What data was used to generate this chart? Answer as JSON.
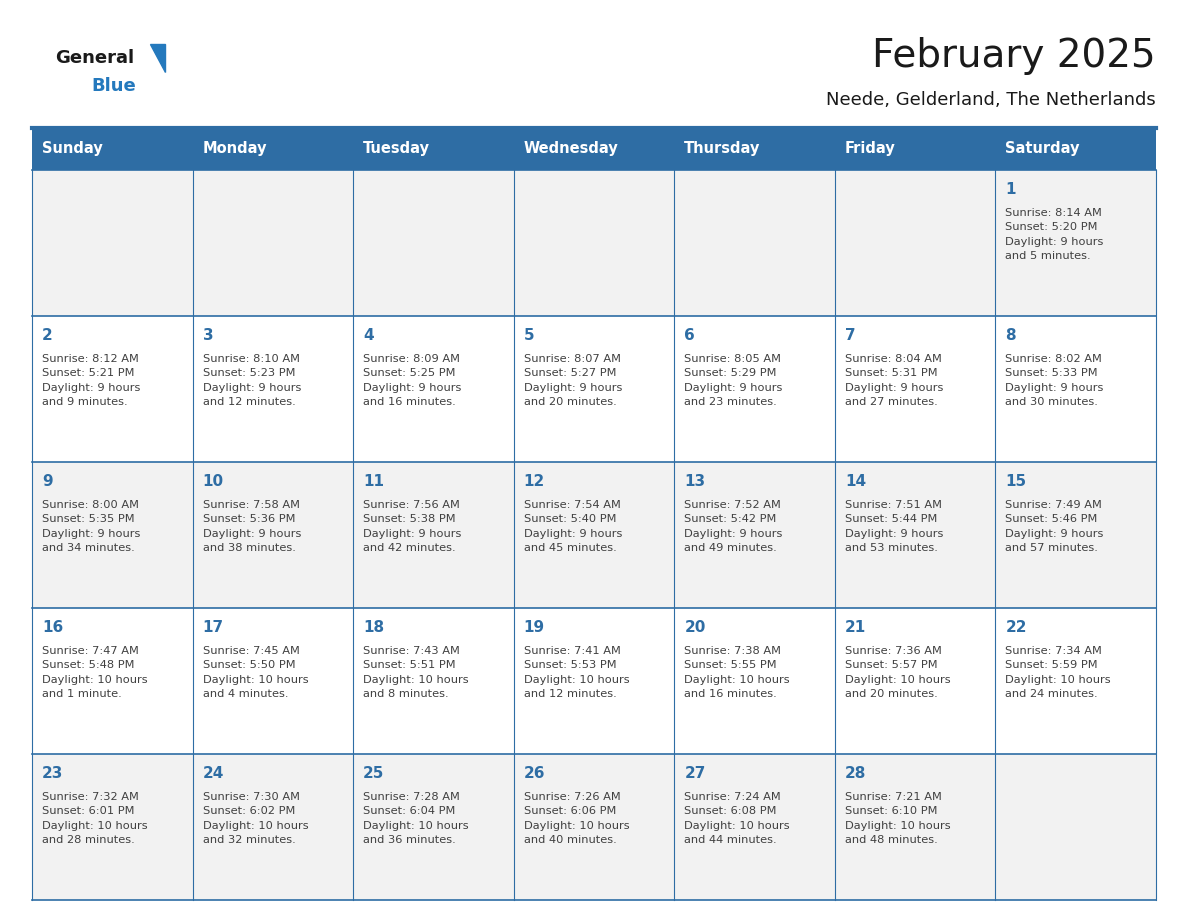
{
  "title": "February 2025",
  "subtitle": "Neede, Gelderland, The Netherlands",
  "days_of_week": [
    "Sunday",
    "Monday",
    "Tuesday",
    "Wednesday",
    "Thursday",
    "Friday",
    "Saturday"
  ],
  "header_bg": "#2E6DA4",
  "header_text": "#FFFFFF",
  "cell_bg_gray": "#F2F2F2",
  "cell_bg_white": "#FFFFFF",
  "cell_border": "#2E6DA4",
  "day_number_color": "#2E6DA4",
  "text_color": "#404040",
  "title_color": "#1a1a1a",
  "logo_general_color": "#1a1a1a",
  "logo_blue_color": "#2479BD",
  "calendar_data": [
    [
      {
        "day": null,
        "info": ""
      },
      {
        "day": null,
        "info": ""
      },
      {
        "day": null,
        "info": ""
      },
      {
        "day": null,
        "info": ""
      },
      {
        "day": null,
        "info": ""
      },
      {
        "day": null,
        "info": ""
      },
      {
        "day": 1,
        "info": "Sunrise: 8:14 AM\nSunset: 5:20 PM\nDaylight: 9 hours\nand 5 minutes."
      }
    ],
    [
      {
        "day": 2,
        "info": "Sunrise: 8:12 AM\nSunset: 5:21 PM\nDaylight: 9 hours\nand 9 minutes."
      },
      {
        "day": 3,
        "info": "Sunrise: 8:10 AM\nSunset: 5:23 PM\nDaylight: 9 hours\nand 12 minutes."
      },
      {
        "day": 4,
        "info": "Sunrise: 8:09 AM\nSunset: 5:25 PM\nDaylight: 9 hours\nand 16 minutes."
      },
      {
        "day": 5,
        "info": "Sunrise: 8:07 AM\nSunset: 5:27 PM\nDaylight: 9 hours\nand 20 minutes."
      },
      {
        "day": 6,
        "info": "Sunrise: 8:05 AM\nSunset: 5:29 PM\nDaylight: 9 hours\nand 23 minutes."
      },
      {
        "day": 7,
        "info": "Sunrise: 8:04 AM\nSunset: 5:31 PM\nDaylight: 9 hours\nand 27 minutes."
      },
      {
        "day": 8,
        "info": "Sunrise: 8:02 AM\nSunset: 5:33 PM\nDaylight: 9 hours\nand 30 minutes."
      }
    ],
    [
      {
        "day": 9,
        "info": "Sunrise: 8:00 AM\nSunset: 5:35 PM\nDaylight: 9 hours\nand 34 minutes."
      },
      {
        "day": 10,
        "info": "Sunrise: 7:58 AM\nSunset: 5:36 PM\nDaylight: 9 hours\nand 38 minutes."
      },
      {
        "day": 11,
        "info": "Sunrise: 7:56 AM\nSunset: 5:38 PM\nDaylight: 9 hours\nand 42 minutes."
      },
      {
        "day": 12,
        "info": "Sunrise: 7:54 AM\nSunset: 5:40 PM\nDaylight: 9 hours\nand 45 minutes."
      },
      {
        "day": 13,
        "info": "Sunrise: 7:52 AM\nSunset: 5:42 PM\nDaylight: 9 hours\nand 49 minutes."
      },
      {
        "day": 14,
        "info": "Sunrise: 7:51 AM\nSunset: 5:44 PM\nDaylight: 9 hours\nand 53 minutes."
      },
      {
        "day": 15,
        "info": "Sunrise: 7:49 AM\nSunset: 5:46 PM\nDaylight: 9 hours\nand 57 minutes."
      }
    ],
    [
      {
        "day": 16,
        "info": "Sunrise: 7:47 AM\nSunset: 5:48 PM\nDaylight: 10 hours\nand 1 minute."
      },
      {
        "day": 17,
        "info": "Sunrise: 7:45 AM\nSunset: 5:50 PM\nDaylight: 10 hours\nand 4 minutes."
      },
      {
        "day": 18,
        "info": "Sunrise: 7:43 AM\nSunset: 5:51 PM\nDaylight: 10 hours\nand 8 minutes."
      },
      {
        "day": 19,
        "info": "Sunrise: 7:41 AM\nSunset: 5:53 PM\nDaylight: 10 hours\nand 12 minutes."
      },
      {
        "day": 20,
        "info": "Sunrise: 7:38 AM\nSunset: 5:55 PM\nDaylight: 10 hours\nand 16 minutes."
      },
      {
        "day": 21,
        "info": "Sunrise: 7:36 AM\nSunset: 5:57 PM\nDaylight: 10 hours\nand 20 minutes."
      },
      {
        "day": 22,
        "info": "Sunrise: 7:34 AM\nSunset: 5:59 PM\nDaylight: 10 hours\nand 24 minutes."
      }
    ],
    [
      {
        "day": 23,
        "info": "Sunrise: 7:32 AM\nSunset: 6:01 PM\nDaylight: 10 hours\nand 28 minutes."
      },
      {
        "day": 24,
        "info": "Sunrise: 7:30 AM\nSunset: 6:02 PM\nDaylight: 10 hours\nand 32 minutes."
      },
      {
        "day": 25,
        "info": "Sunrise: 7:28 AM\nSunset: 6:04 PM\nDaylight: 10 hours\nand 36 minutes."
      },
      {
        "day": 26,
        "info": "Sunrise: 7:26 AM\nSunset: 6:06 PM\nDaylight: 10 hours\nand 40 minutes."
      },
      {
        "day": 27,
        "info": "Sunrise: 7:24 AM\nSunset: 6:08 PM\nDaylight: 10 hours\nand 44 minutes."
      },
      {
        "day": 28,
        "info": "Sunrise: 7:21 AM\nSunset: 6:10 PM\nDaylight: 10 hours\nand 48 minutes."
      },
      {
        "day": null,
        "info": ""
      }
    ]
  ],
  "row_bg_colors": [
    "#F2F2F2",
    "#FFFFFF",
    "#F2F2F2",
    "#FFFFFF",
    "#F2F2F2"
  ]
}
